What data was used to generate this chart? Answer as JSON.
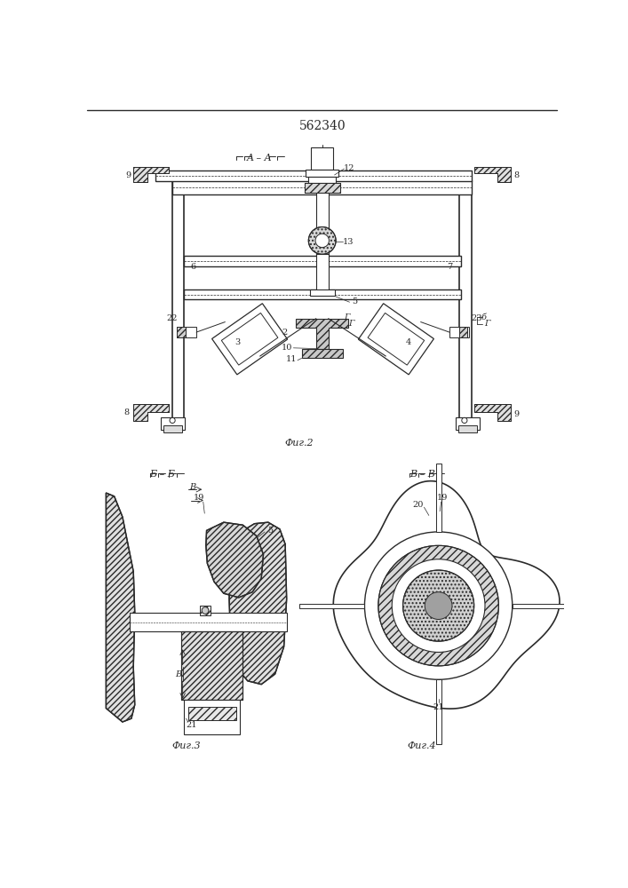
{
  "title": "562340",
  "background_color": "#ffffff",
  "line_color": "#2a2a2a",
  "fig2_label": "Фиг.2",
  "fig3_label": "Фиг.3",
  "fig4_label": "Фиг.4",
  "fig_label_A": "A – A",
  "fig_label_B": "Б – Б",
  "fig_label_BV": "В – В"
}
